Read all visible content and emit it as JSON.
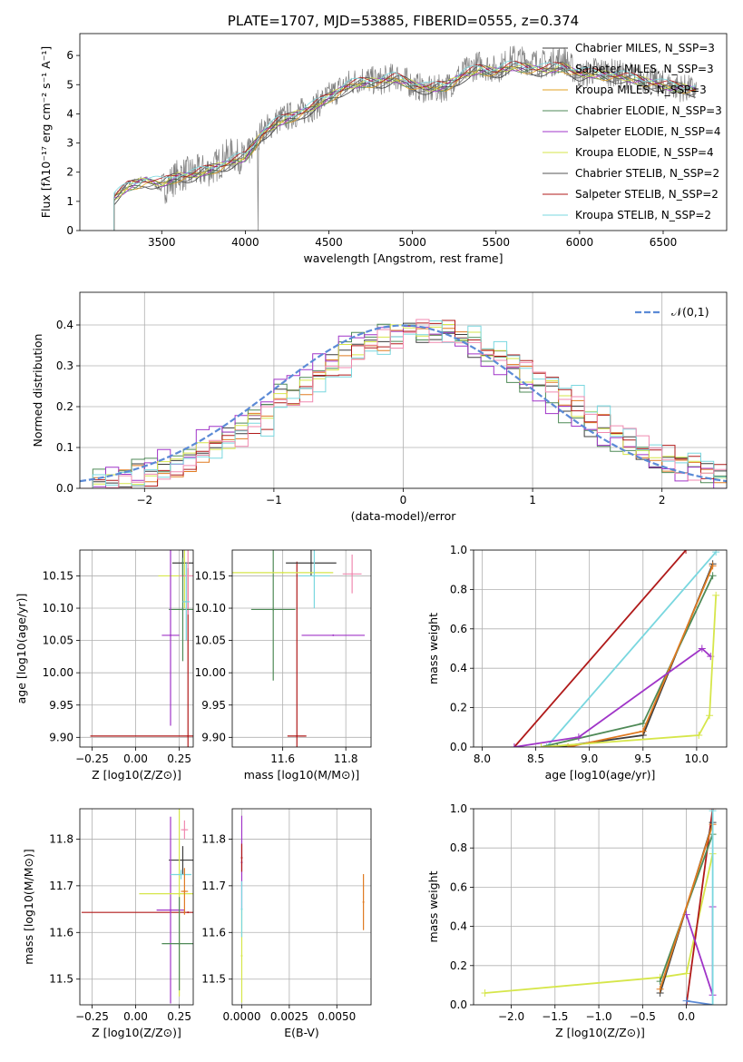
{
  "chart_data": [
    {
      "type": "line",
      "title": "PLATE=1707, MJD=53885, FIBERID=0555, z=0.374",
      "xlabel": "wavelength [Angstrom, rest frame]",
      "ylabel": "Flux [fλ10⁻¹⁷ erg cm⁻² s⁻¹ A⁻¹]",
      "xlim": [
        3010,
        6880
      ],
      "ylim": [
        0,
        6.75
      ],
      "xticks": [
        "3500",
        "4000",
        "4500",
        "5000",
        "5500",
        "6000",
        "6500"
      ],
      "yticks": [
        "0",
        "1",
        "2",
        "3",
        "4",
        "5",
        "6"
      ],
      "legend_position": "top-right",
      "grid": false,
      "data_series": {
        "name": "data",
        "color": "#808080",
        "x": [
          3215,
          3300,
          3400,
          3500,
          3600,
          3700,
          3800,
          3900,
          4000,
          4100,
          4200,
          4300,
          4400,
          4500,
          4600,
          4700,
          4800,
          4900,
          5000,
          5100,
          5200,
          5300,
          5400,
          5500,
          5600,
          5700,
          5800,
          5900,
          6000,
          6100,
          6200,
          6300,
          6400,
          6500,
          6600,
          6700
        ],
        "y": [
          1.2,
          1.6,
          1.8,
          1.4,
          1.9,
          2.0,
          2.1,
          2.6,
          2.5,
          3.4,
          3.8,
          4.0,
          4.2,
          4.6,
          5.0,
          5.2,
          5.1,
          5.3,
          5.0,
          4.8,
          4.9,
          5.4,
          5.7,
          5.5,
          5.9,
          5.8,
          5.7,
          5.9,
          5.3,
          5.5,
          5.4,
          5.3,
          5.2,
          5.0,
          4.9,
          4.8
        ]
      },
      "model_shape": {
        "x": [
          3215,
          3300,
          3400,
          3500,
          3600,
          3700,
          3800,
          3900,
          4000,
          4100,
          4200,
          4300,
          4400,
          4500,
          4600,
          4700,
          4800,
          4900,
          5000,
          5100,
          5200,
          5300,
          5400,
          5500,
          5600,
          5700,
          5800,
          5900,
          6000,
          6100,
          6200,
          6300,
          6400,
          6500,
          6600,
          6700
        ],
        "y": [
          1.1,
          1.5,
          1.7,
          1.6,
          1.85,
          1.9,
          2.1,
          2.3,
          2.5,
          3.3,
          3.7,
          3.95,
          4.2,
          4.55,
          4.9,
          5.05,
          5.1,
          5.2,
          5.0,
          4.85,
          4.95,
          5.3,
          5.5,
          5.45,
          5.6,
          5.55,
          5.5,
          5.6,
          5.35,
          5.35,
          5.3,
          5.2,
          5.1,
          4.95,
          4.9,
          4.8
        ]
      },
      "series": [
        {
          "name": "Chabrier MILES, N_SSP=3",
          "color": "#3d3d3d"
        },
        {
          "name": "Salpeter MILES, N_SSP=3",
          "color": "#6b6b6b"
        },
        {
          "name": "Kroupa MILES, N_SSP=3",
          "color": "#e0a020"
        },
        {
          "name": "Chabrier ELODIE, N_SSP=3",
          "color": "#4f8a57"
        },
        {
          "name": "Salpeter ELODIE, N_SSP=4",
          "color": "#a035c8"
        },
        {
          "name": "Kroupa ELODIE, N_SSP=4",
          "color": "#d6e64a"
        },
        {
          "name": "Chabrier STELIB, N_SSP=2",
          "color": "#555555"
        },
        {
          "name": "Salpeter STELIB, N_SSP=2",
          "color": "#b01a1a"
        },
        {
          "name": "Kroupa STELIB, N_SSP=2",
          "color": "#79d7df"
        }
      ]
    },
    {
      "type": "line",
      "xlabel": "(data-model)/error",
      "ylabel": "Normed distribution",
      "xlim": [
        -2.5,
        2.5
      ],
      "ylim": [
        0,
        0.48
      ],
      "xticks": [
        "−2",
        "−1",
        "0",
        "1",
        "2"
      ],
      "yticks": [
        "0.0",
        "0.1",
        "0.2",
        "0.3",
        "0.4"
      ],
      "grid": true,
      "legend": "𝒩(0,1)",
      "legend_position": "top-right",
      "curve": {
        "name": "𝒩(0,1)",
        "color": "#5b8ad6",
        "mean": 0,
        "sd": 1
      },
      "histograms": [
        {
          "color": "#3d3d3d",
          "shift": 0.1
        },
        {
          "color": "#e07a20",
          "shift": 0.2
        },
        {
          "color": "#4f8a57",
          "shift": 0.05
        },
        {
          "color": "#a035c8",
          "shift": 0.0
        },
        {
          "color": "#d6e64a",
          "shift": 0.15
        },
        {
          "color": "#b01a1a",
          "shift": 0.25
        },
        {
          "color": "#79d7df",
          "shift": 0.3
        },
        {
          "color": "#f08ab0",
          "shift": 0.22
        }
      ]
    },
    {
      "type": "scatter",
      "xlabel": "Z [log10(Z/Z⊙)]",
      "ylabel": "age  [log10(age/yr)]",
      "xlim": [
        -0.32,
        0.33
      ],
      "ylim": [
        9.885,
        10.19
      ],
      "xticks": [
        "−0.25",
        "0.00",
        "0.25"
      ],
      "yticks": [
        "9.90",
        "9.95",
        "10.00",
        "10.05",
        "10.10",
        "10.15"
      ],
      "grid": true,
      "points": [
        {
          "x": 0.3,
          "y": 9.902,
          "xerr": 0.56,
          "yerr": 0.26,
          "color": "#b01a1a"
        },
        {
          "x": 0.27,
          "y": 10.17,
          "xerr": 0.06,
          "yerr": 0.02,
          "color": "#3d3d3d"
        },
        {
          "x": 0.28,
          "y": 10.15,
          "xerr": 0.15,
          "yerr": 0.05,
          "color": "#d6e64a"
        },
        {
          "x": 0.3,
          "y": 10.15,
          "xerr": 0.05,
          "yerr": 0.06,
          "color": "#f08ab0"
        },
        {
          "x": 0.27,
          "y": 10.098,
          "xerr": 0.08,
          "yerr": 0.08,
          "color": "#4f8a57"
        },
        {
          "x": 0.2,
          "y": 10.058,
          "xerr": 0.05,
          "yerr": 0.14,
          "color": "#a035c8"
        },
        {
          "x": 0.29,
          "y": 10.11,
          "xerr": 0.02,
          "yerr": 0.06,
          "color": "#79d7df"
        }
      ]
    },
    {
      "type": "scatter",
      "xlabel": "mass [log10(M/M⊙)]",
      "ylabel": "",
      "xlim": [
        11.44,
        11.88
      ],
      "ylim": [
        9.885,
        10.19
      ],
      "xticks": [
        "11.6",
        "11.8"
      ],
      "yticks": [
        "9.90",
        "9.95",
        "10.00",
        "10.05",
        "10.10",
        "10.15"
      ],
      "grid": true,
      "points": [
        {
          "x": 11.645,
          "y": 9.902,
          "xerr": 0.03,
          "yerr": 0.27,
          "color": "#b01a1a"
        },
        {
          "x": 11.69,
          "y": 10.17,
          "xerr": 0.08,
          "yerr": 0.02,
          "color": "#3d3d3d"
        },
        {
          "x": 11.57,
          "y": 10.098,
          "xerr": 0.07,
          "yerr": 0.11,
          "color": "#4f8a57"
        },
        {
          "x": 11.76,
          "y": 10.058,
          "xerr": 0.1,
          "yerr": 0.0,
          "color": "#a035c8"
        },
        {
          "x": 11.6,
          "y": 10.155,
          "xerr": 0.16,
          "yerr": 0.0,
          "color": "#d6e64a"
        },
        {
          "x": 11.82,
          "y": 10.153,
          "xerr": 0.03,
          "yerr": 0.03,
          "color": "#f08ab0"
        },
        {
          "x": 11.7,
          "y": 10.15,
          "xerr": 0.05,
          "yerr": 0.05,
          "color": "#79d7df"
        }
      ]
    },
    {
      "type": "line",
      "xlabel": "age  [log10(age/yr)]",
      "ylabel": "mass weight",
      "xlim": [
        7.92,
        10.28
      ],
      "ylim": [
        0,
        1
      ],
      "xticks": [
        "8.0",
        "8.5",
        "9.0",
        "9.5",
        "10.0"
      ],
      "yticks": [
        "0.0",
        "0.2",
        "0.4",
        "0.6",
        "0.8",
        "1.0"
      ],
      "grid": true,
      "series": [
        {
          "color": "#b01a1a",
          "x": [
            8.3,
            9.9
          ],
          "y": [
            0.0,
            1.0
          ]
        },
        {
          "color": "#79d7df",
          "x": [
            8.6,
            10.18
          ],
          "y": [
            0.0,
            0.99
          ]
        },
        {
          "color": "#3d3d3d",
          "x": [
            8.7,
            9.5,
            10.15
          ],
          "y": [
            0.0,
            0.06,
            0.93
          ]
        },
        {
          "color": "#4f8a57",
          "x": [
            8.55,
            9.5,
            10.15
          ],
          "y": [
            0.0,
            0.12,
            0.87
          ]
        },
        {
          "color": "#e07a20",
          "x": [
            8.8,
            9.5,
            10.15
          ],
          "y": [
            0.0,
            0.08,
            0.92
          ]
        },
        {
          "color": "#a035c8",
          "x": [
            8.3,
            8.9,
            10.05,
            10.13
          ],
          "y": [
            0.0,
            0.05,
            0.5,
            0.46
          ]
        },
        {
          "color": "#d6e64a",
          "x": [
            8.55,
            10.02,
            10.12,
            10.18
          ],
          "y": [
            0.0,
            0.06,
            0.16,
            0.77
          ]
        }
      ]
    },
    {
      "type": "scatter",
      "xlabel": "Z [log10(Z/Z⊙)]",
      "ylabel": "mass [log10(M/M⊙)]",
      "xlim": [
        -0.32,
        0.33
      ],
      "ylim": [
        11.445,
        11.865
      ],
      "xticks": [
        "−0.25",
        "0.00",
        "0.25"
      ],
      "yticks": [
        "11.5",
        "11.6",
        "11.7",
        "11.8"
      ],
      "grid": true,
      "points": [
        {
          "x": 0.3,
          "y": 11.643,
          "xerr": 0.61,
          "yerr": 0.0,
          "color": "#b01a1a"
        },
        {
          "x": 0.27,
          "y": 11.755,
          "xerr": 0.08,
          "yerr": 0.03,
          "color": "#3d3d3d"
        },
        {
          "x": 0.2,
          "y": 11.648,
          "xerr": 0.08,
          "yerr": 0.2,
          "color": "#a035c8"
        },
        {
          "x": 0.25,
          "y": 11.683,
          "xerr": 0.23,
          "yerr": 0.22,
          "color": "#d6e64a"
        },
        {
          "x": 0.25,
          "y": 11.576,
          "xerr": 0.1,
          "yerr": 0.1,
          "color": "#4f8a57"
        },
        {
          "x": 0.26,
          "y": 11.724,
          "xerr": 0.06,
          "yerr": 0.01,
          "color": "#79d7df"
        },
        {
          "x": 0.28,
          "y": 11.82,
          "xerr": 0.02,
          "yerr": 0.02,
          "color": "#f08ab0"
        },
        {
          "x": 0.28,
          "y": 11.688,
          "xerr": 0.02,
          "yerr": 0.05,
          "color": "#e07a20"
        }
      ]
    },
    {
      "type": "scatter",
      "xlabel": "E(B-V)",
      "ylabel": "",
      "xlim": [
        -0.0005,
        0.0068
      ],
      "ylim": [
        11.445,
        11.865
      ],
      "xticks": [
        "0.0000",
        "0.0025",
        "0.0050"
      ],
      "yticks": [
        "11.5",
        "11.6",
        "11.7",
        "11.8"
      ],
      "grid": true,
      "points": [
        {
          "x": 0.0,
          "y": 11.75,
          "yerr": 0.1,
          "color": "#a035c8"
        },
        {
          "x": 0.0,
          "y": 11.76,
          "yerr": 0.03,
          "color": "#b01a1a"
        },
        {
          "x": 0.0,
          "y": 11.55,
          "yerr": 0.1,
          "color": "#d6e64a"
        },
        {
          "x": 0.0,
          "y": 11.65,
          "yerr": 0.06,
          "color": "#79d7df"
        },
        {
          "x": 0.0064,
          "y": 11.665,
          "yerr": 0.06,
          "color": "#e07a20"
        }
      ]
    },
    {
      "type": "line",
      "xlabel": "Z [log10(Z/Z⊙)]",
      "ylabel": "mass weight",
      "xlim": [
        -2.43,
        0.46
      ],
      "ylim": [
        0,
        1
      ],
      "xticks": [
        "−2.0",
        "−1.5",
        "−1.0",
        "−0.5",
        "0.0"
      ],
      "yticks": [
        "0.0",
        "0.2",
        "0.4",
        "0.6",
        "0.8",
        "1.0"
      ],
      "grid": true,
      "series": [
        {
          "color": "#d6e64a",
          "x": [
            -2.3,
            -0.3,
            0.0,
            0.3
          ],
          "y": [
            0.06,
            0.14,
            0.16,
            0.77
          ]
        },
        {
          "color": "#b01a1a",
          "x": [
            0.0,
            0.3
          ],
          "y": [
            0.0,
            1.0
          ]
        },
        {
          "color": "#a035c8",
          "x": [
            0.0,
            0.3,
            0.3
          ],
          "y": [
            0.46,
            0.05,
            0.5
          ]
        },
        {
          "color": "#5b8ad6",
          "x": [
            0.0,
            0.3
          ],
          "y": [
            0.02,
            0.0
          ]
        },
        {
          "color": "#3d3d3d",
          "x": [
            -0.3,
            0.3
          ],
          "y": [
            0.06,
            0.93
          ]
        },
        {
          "color": "#4f8a57",
          "x": [
            -0.3,
            0.3
          ],
          "y": [
            0.12,
            0.87
          ]
        },
        {
          "color": "#e07a20",
          "x": [
            -0.3,
            0.3
          ],
          "y": [
            0.08,
            0.92
          ]
        },
        {
          "color": "#79d7df",
          "x": [
            0.3,
            0.3
          ],
          "y": [
            0.0,
            0.99
          ]
        }
      ]
    }
  ]
}
